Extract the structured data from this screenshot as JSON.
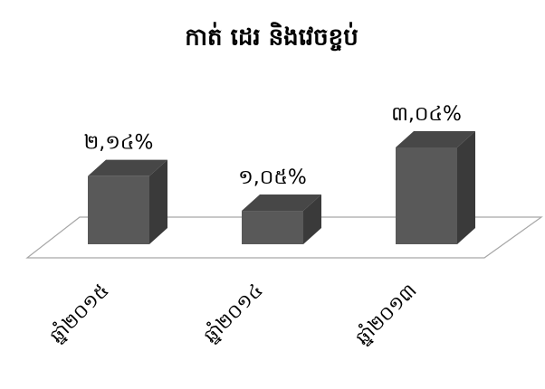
{
  "chart_data": {
    "type": "bar3d",
    "title": "កាត់ ដេរ និងវេចខ្ចប់",
    "categories": [
      "ឆ្នាំ២០១៥",
      "ឆ្នាំ២០១៤",
      "ឆ្នាំ២០១៣"
    ],
    "values": [
      2.14,
      1.05,
      3.04
    ],
    "value_labels": [
      "២,១៤%",
      "១,០៥%",
      "៣,០៤%"
    ],
    "color": "#595959"
  }
}
